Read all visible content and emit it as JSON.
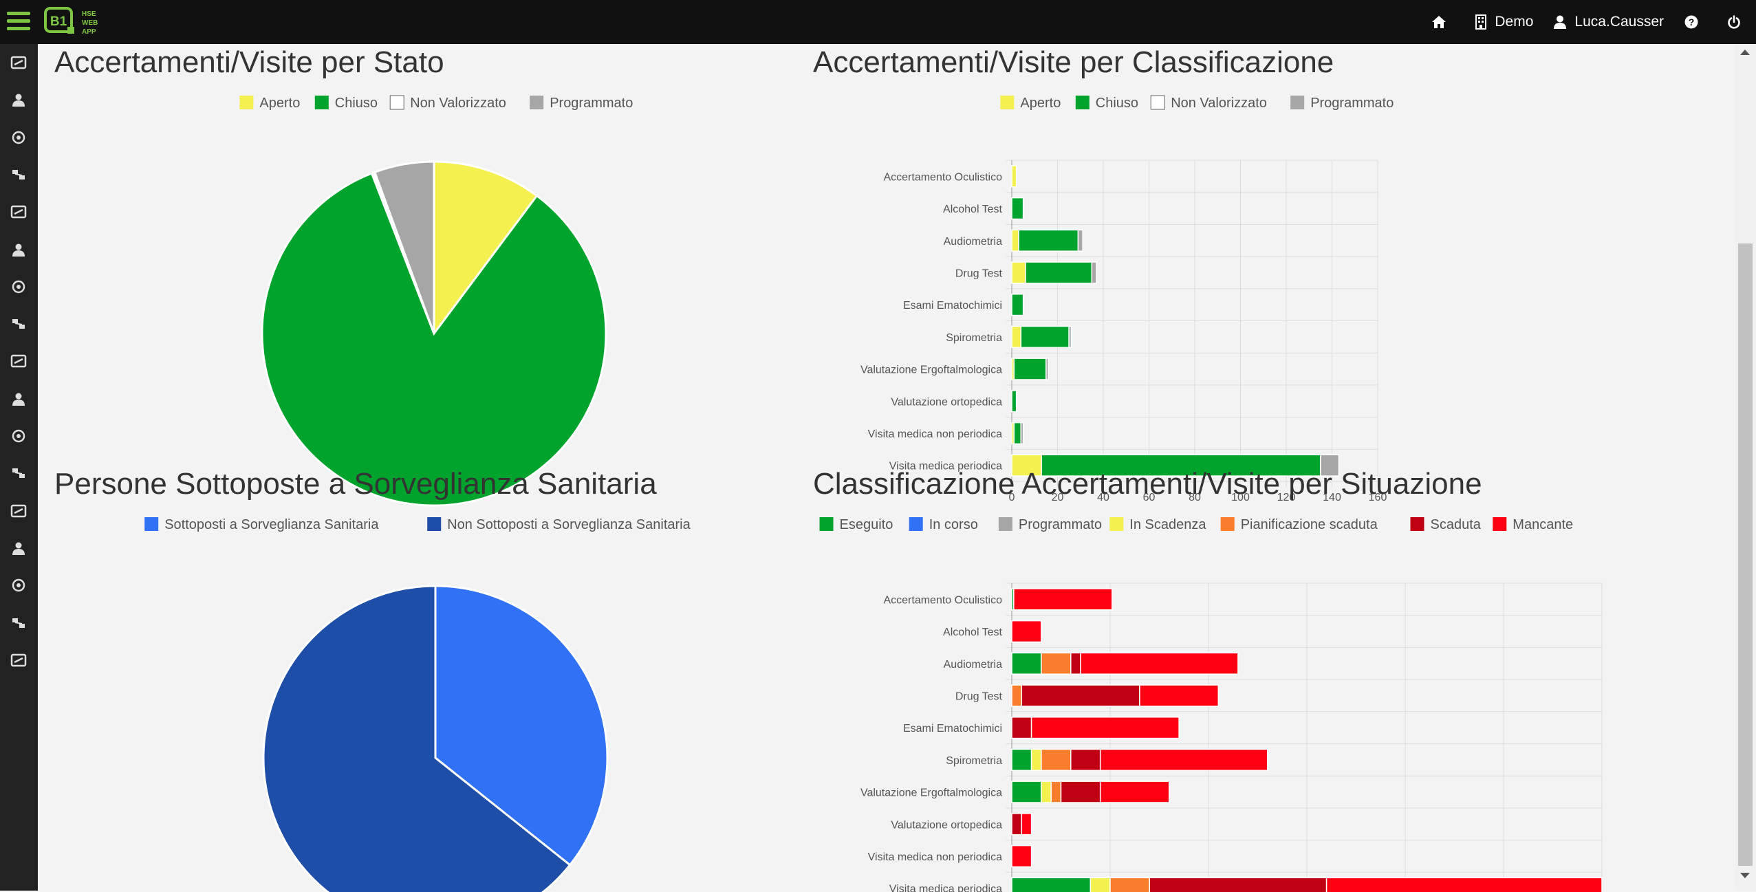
{
  "app": {
    "logo_mark": "B1",
    "logo_text": [
      "HSE",
      "WEB",
      "APP"
    ],
    "brand_color": "#7ec544"
  },
  "topnav": {
    "home_icon": "home-icon",
    "company_icon": "building-icon",
    "company_label": "Demo",
    "user_icon": "user-icon",
    "user_label": "Luca.Causser",
    "help_icon": "help-icon",
    "power_icon": "power-icon"
  },
  "sidebar": {
    "icons": [
      "workers-icon",
      "person-icon",
      "helmet-icon",
      "injury-icon",
      "machinery-icon",
      "fire-icon",
      "network-icon",
      "history-icon",
      "training-icon",
      "eye-icon",
      "trend-icon",
      "org-chart-icon",
      "settings-icon",
      "report-icon",
      "calendar-icon",
      "factory-icon",
      "plant-icon"
    ]
  },
  "charts": {
    "stato": {
      "title": "Accertamenti/Visite per Stato",
      "chart_data": {
        "type": "pie",
        "labels": [
          "Aperto",
          "Chiuso",
          "Non Valorizzato",
          "Programmato"
        ],
        "values": [
          10.2,
          83.9,
          0.3,
          5.6
        ],
        "colors": [
          "#f4f050",
          "#00a32c",
          "#ffffff",
          "#a6a6a6"
        ]
      }
    },
    "classificazione": {
      "title": "Accertamenti/Visite per Classificazione",
      "chart_data": {
        "type": "bar",
        "orientation": "horizontal",
        "stacked": true,
        "categories": [
          "Accertamento Oculistico",
          "Alcohol Test",
          "Audiometria",
          "Drug Test",
          "Esami Ematochimici",
          "Spirometria",
          "Valutazione Ergoftalmologica",
          "Valutazione ortopedica",
          "Visita medica non periodica",
          "Visita medica periodica"
        ],
        "series": [
          {
            "name": "Aperto",
            "color": "#f4f050",
            "values": [
              2,
              0,
              3,
              6,
              0,
              4,
              1,
              0,
              1,
              13
            ]
          },
          {
            "name": "Chiuso",
            "color": "#00a32c",
            "values": [
              0,
              5,
              26,
              29,
              5,
              21,
              14,
              2,
              3,
              122
            ]
          },
          {
            "name": "Non Valorizzato",
            "color": "#ffffff",
            "values": [
              0,
              0,
              0,
              0,
              0,
              0,
              0,
              0,
              0,
              0
            ]
          },
          {
            "name": "Programmato",
            "color": "#a6a6a6",
            "values": [
              0,
              0,
              2,
              2,
              0,
              1,
              1,
              0,
              1,
              8
            ]
          }
        ],
        "xlim": [
          0,
          160
        ],
        "xticks": [
          0,
          20,
          40,
          60,
          80,
          100,
          120,
          140,
          160
        ],
        "grid": true,
        "legend": "top"
      }
    },
    "persone": {
      "title": "Persone Sottoposte a Sorveglianza Sanitaria",
      "chart_data": {
        "type": "pie",
        "labels": [
          "Sottoposti a Sorveglianza Sanitaria",
          "Non Sottoposti a Sorveglianza Sanitaria"
        ],
        "values": [
          35.7,
          64.3
        ],
        "colors": [
          "#3171f5",
          "#1f4ea8"
        ]
      }
    },
    "situazione": {
      "title": "Classificazione Accertamenti/Visite per Situazione",
      "chart_data": {
        "type": "bar",
        "orientation": "horizontal",
        "stacked": true,
        "categories": [
          "Accertamento Oculistico",
          "Alcohol Test",
          "Audiometria",
          "Drug Test",
          "Esami Ematochimici",
          "Spirometria",
          "Valutazione Ergoftalmologica",
          "Valutazione ortopedica",
          "Visita medica non periodica",
          "Visita medica periodica"
        ],
        "series": [
          {
            "name": "Eseguito",
            "color": "#00a32c",
            "values": [
              0.2,
              0,
              3,
              0,
              0,
              2,
              3,
              0,
              0,
              8
            ]
          },
          {
            "name": "In corso",
            "color": "#3171f5",
            "values": [
              0,
              0,
              0,
              0,
              0,
              0,
              0,
              0,
              0,
              0
            ]
          },
          {
            "name": "Programmato",
            "color": "#a6a6a6",
            "values": [
              0,
              0,
              0,
              0,
              0,
              0,
              0,
              0,
              0,
              0
            ]
          },
          {
            "name": "In Scadenza",
            "color": "#f4f050",
            "values": [
              0,
              0,
              0,
              0,
              0,
              1,
              1,
              0,
              0,
              2
            ]
          },
          {
            "name": "Pianificazione scaduta",
            "color": "#f97d2b",
            "values": [
              0,
              0,
              3,
              1,
              0,
              3,
              1,
              0,
              0,
              4
            ]
          },
          {
            "name": "Scaduta",
            "color": "#c00012",
            "values": [
              0,
              0,
              1,
              12,
              2,
              3,
              4,
              1,
              0,
              18
            ]
          },
          {
            "name": "Mancante",
            "color": "#ff0013",
            "values": [
              10,
              3,
              16,
              8,
              15,
              17,
              7,
              1,
              2,
              28
            ]
          }
        ],
        "xlim": [
          0,
          60
        ],
        "xticks": [
          0,
          10,
          20,
          30,
          40,
          50,
          60
        ],
        "grid": true,
        "legend": "top"
      }
    }
  }
}
